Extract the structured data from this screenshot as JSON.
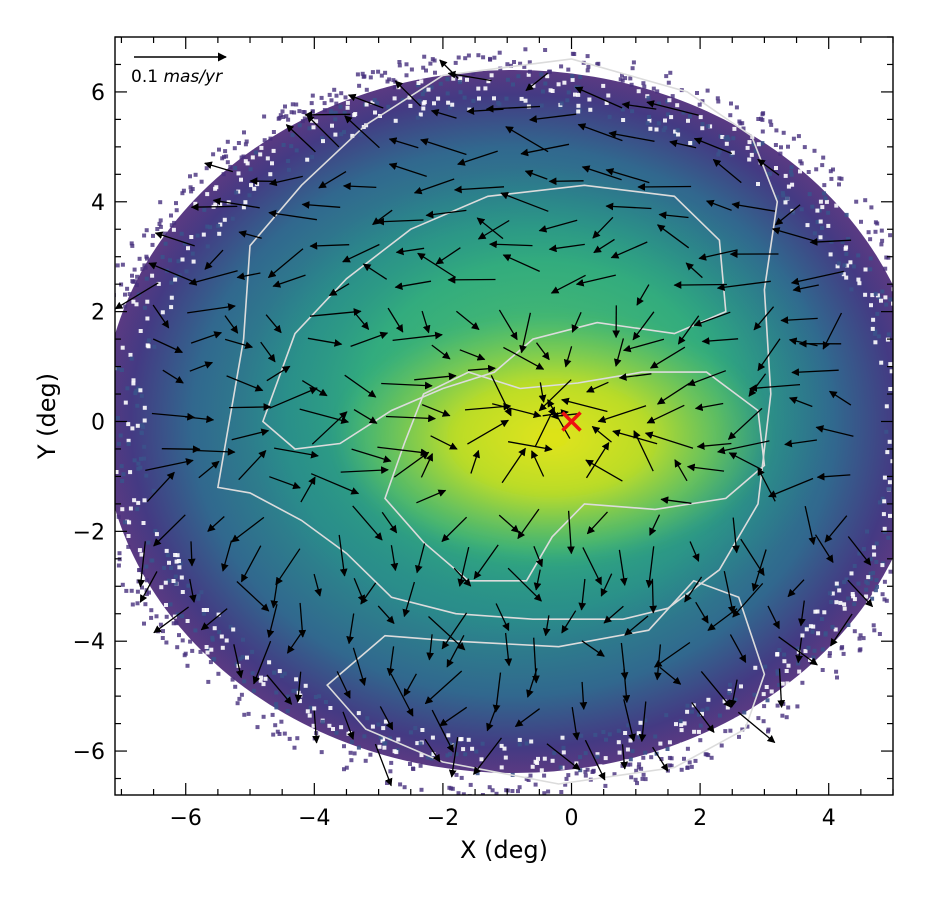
{
  "chart_data": {
    "type": "scatter",
    "subtype": "density map with proper-motion vector field and contours",
    "title": "",
    "xlabel": "X (deg)",
    "ylabel": "Y (deg)",
    "xlim": [
      -7.1,
      5.0
    ],
    "ylim": [
      -6.8,
      7.0
    ],
    "x_ticks": [
      -6,
      -4,
      -2,
      0,
      2,
      4
    ],
    "y_ticks": [
      -6,
      -4,
      -2,
      0,
      2,
      4,
      6
    ],
    "x_tick_labels": [
      "−6",
      "−4",
      "−2",
      "0",
      "2",
      "4"
    ],
    "y_tick_labels": [
      "−6",
      "−4",
      "−2",
      "0",
      "2",
      "4",
      "6"
    ],
    "grid": false,
    "colormap": "viridis",
    "density_extent": {
      "center": [
        -0.9,
        0.0
      ],
      "radius": 6.4
    },
    "density_core": {
      "center": [
        -0.3,
        -0.3
      ],
      "half_widths": [
        2.7,
        1.4
      ]
    },
    "contours_color": "#dcdcdc",
    "contours": [
      [
        [
          -5.5,
          -1.2
        ],
        [
          -5.1,
          1.5
        ],
        [
          -5.0,
          3.2
        ],
        [
          -4.2,
          4.3
        ],
        [
          -3.2,
          5.4
        ],
        [
          -2.0,
          6.3
        ],
        [
          0.0,
          6.6
        ],
        [
          1.8,
          6.0
        ],
        [
          2.8,
          5.2
        ],
        [
          3.2,
          4.0
        ],
        [
          3.0,
          2.4
        ],
        [
          3.1,
          0.5
        ],
        [
          2.9,
          -1.5
        ],
        [
          2.3,
          -2.7
        ],
        [
          1.5,
          -3.4
        ],
        [
          0.8,
          -3.6
        ],
        [
          -0.6,
          -3.6
        ],
        [
          -1.8,
          -3.5
        ],
        [
          -2.8,
          -3.2
        ],
        [
          -3.5,
          -2.4
        ],
        [
          -4.2,
          -1.8
        ],
        [
          -5.0,
          -1.3
        ],
        [
          -5.5,
          -1.2
        ]
      ],
      [
        [
          -4.8,
          0.0
        ],
        [
          -4.3,
          1.6
        ],
        [
          -3.5,
          2.6
        ],
        [
          -2.5,
          3.5
        ],
        [
          -1.3,
          4.1
        ],
        [
          0.2,
          4.3
        ],
        [
          1.6,
          4.1
        ],
        [
          2.3,
          3.3
        ],
        [
          2.4,
          2.0
        ],
        [
          1.6,
          1.6
        ],
        [
          0.4,
          1.8
        ],
        [
          -0.6,
          1.5
        ],
        [
          -1.2,
          0.9
        ],
        [
          -2.0,
          0.6
        ],
        [
          -2.8,
          0.2
        ],
        [
          -3.6,
          -0.4
        ],
        [
          -4.3,
          -0.5
        ],
        [
          -4.8,
          0.0
        ]
      ],
      [
        [
          -2.6,
          -0.4
        ],
        [
          -2.3,
          0.5
        ],
        [
          -1.6,
          0.9
        ],
        [
          -0.8,
          0.6
        ],
        [
          0.1,
          0.7
        ],
        [
          1.1,
          0.9
        ],
        [
          2.1,
          0.9
        ],
        [
          2.9,
          0.2
        ],
        [
          3.0,
          -0.8
        ],
        [
          2.4,
          -1.4
        ],
        [
          1.3,
          -1.6
        ],
        [
          0.2,
          -1.5
        ],
        [
          -0.3,
          -2.1
        ],
        [
          -0.7,
          -2.9
        ],
        [
          -1.6,
          -2.9
        ],
        [
          -2.3,
          -2.2
        ],
        [
          -2.9,
          -1.4
        ],
        [
          -2.6,
          -0.4
        ]
      ],
      [
        [
          -3.8,
          -4.8
        ],
        [
          -3.2,
          -5.6
        ],
        [
          -2.0,
          -6.2
        ],
        [
          -0.2,
          -6.6
        ],
        [
          1.6,
          -6.3
        ],
        [
          2.7,
          -5.6
        ],
        [
          3.0,
          -4.6
        ],
        [
          2.6,
          -3.2
        ],
        [
          1.9,
          -2.9
        ],
        [
          1.2,
          -3.8
        ],
        [
          -0.2,
          -4.1
        ],
        [
          -1.8,
          -4.0
        ],
        [
          -2.9,
          -3.9
        ],
        [
          -3.8,
          -4.8
        ]
      ]
    ],
    "center_marker": {
      "x": 0.0,
      "y": 0.0,
      "shape": "x",
      "color": "#ee1111"
    },
    "vector_scale": {
      "label": "0.1 mas/yr",
      "value": 0.1,
      "units": "mas/yr"
    },
    "vectors": {
      "x0": -6.5,
      "y0": -6.4,
      "step": 0.6,
      "grid_extent": [
        -6.8,
        4.8,
        -6.6,
        6.9
      ]
    },
    "vector_units": "mas/yr"
  }
}
